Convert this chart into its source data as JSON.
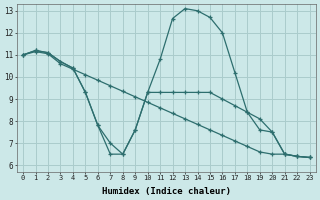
{
  "title": "",
  "xlabel": "Humidex (Indice chaleur)",
  "bg_color": "#cce8e8",
  "grid_color": "#aacccc",
  "line_color": "#2d6e6e",
  "xlim_min": -0.5,
  "xlim_max": 23.5,
  "ylim_min": 5.7,
  "ylim_max": 13.3,
  "yticks": [
    6,
    7,
    8,
    9,
    10,
    11,
    12,
    13
  ],
  "xticks": [
    0,
    1,
    2,
    3,
    4,
    5,
    6,
    7,
    8,
    9,
    10,
    11,
    12,
    13,
    14,
    15,
    16,
    17,
    18,
    19,
    20,
    21,
    22,
    23
  ],
  "series1": [
    11.0,
    11.2,
    11.1,
    10.7,
    10.4,
    9.3,
    7.8,
    7.0,
    6.5,
    7.6,
    9.3,
    10.8,
    12.65,
    13.1,
    13.0,
    12.7,
    12.0,
    10.2,
    8.4,
    7.6,
    7.5,
    6.5,
    6.4,
    6.35
  ],
  "series2": [
    11.0,
    11.15,
    11.05,
    10.6,
    10.35,
    10.1,
    9.85,
    9.6,
    9.35,
    9.1,
    8.85,
    8.6,
    8.35,
    8.1,
    7.85,
    7.6,
    7.35,
    7.1,
    6.85,
    6.6,
    6.5,
    6.5,
    6.4,
    6.35
  ],
  "series3": [
    11.0,
    11.2,
    11.1,
    10.7,
    10.4,
    9.3,
    7.8,
    6.5,
    6.5,
    7.6,
    9.3,
    9.3,
    9.3,
    9.3,
    9.3,
    9.3,
    9.0,
    8.7,
    8.4,
    8.1,
    7.5,
    6.5,
    6.4,
    6.35
  ]
}
